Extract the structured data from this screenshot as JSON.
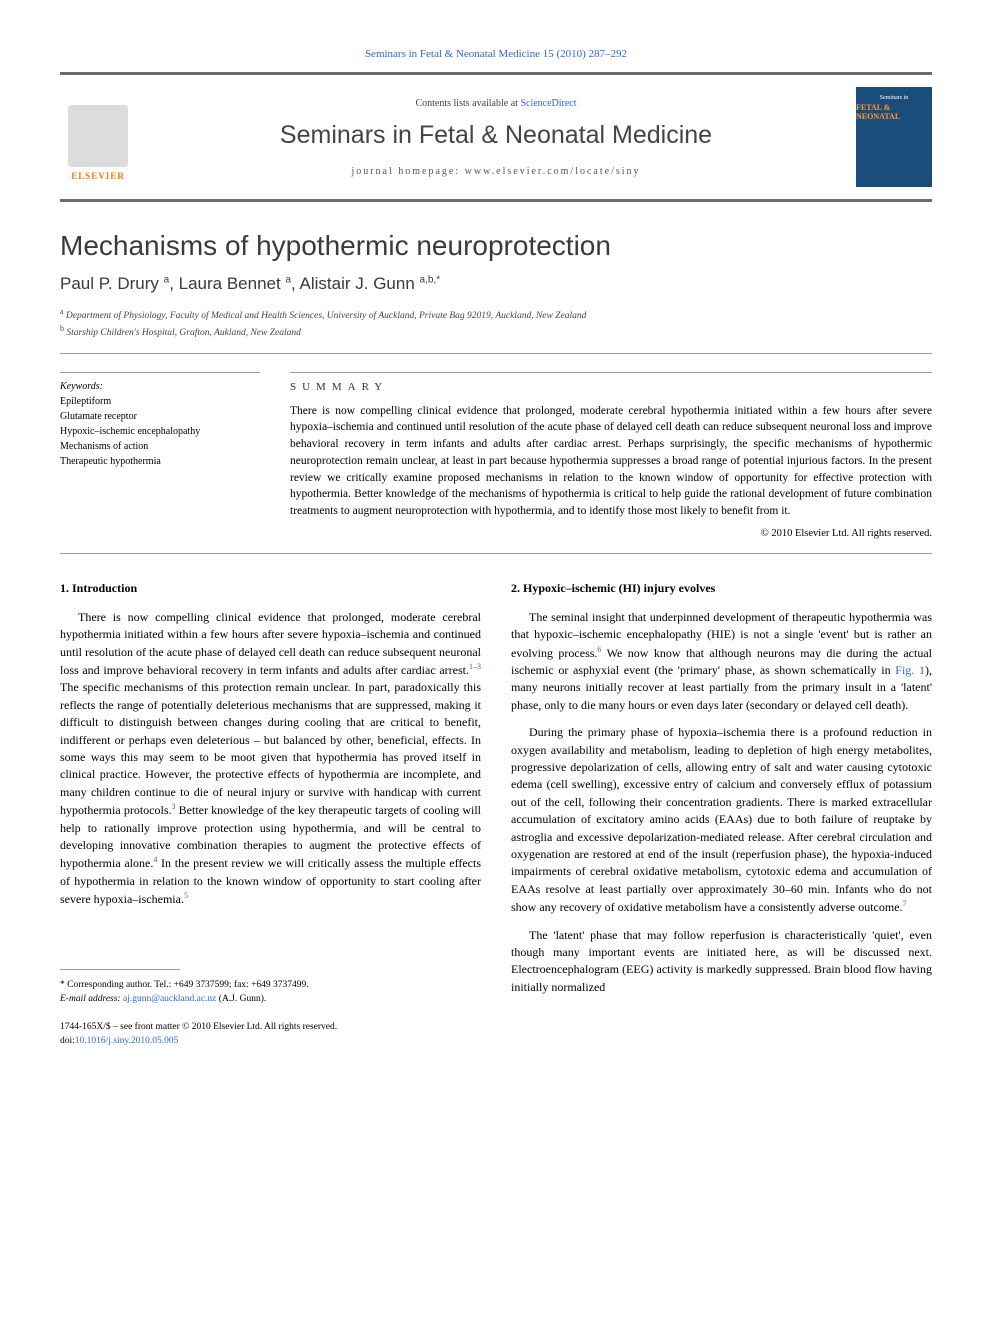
{
  "citation": "Seminars in Fetal & Neonatal Medicine 15 (2010) 287–292",
  "header": {
    "contents_prefix": "Contents lists available at ",
    "contents_link": "ScienceDirect",
    "journal_name": "Seminars in Fetal & Neonatal Medicine",
    "homepage_label": "journal homepage: www.elsevier.com/locate/siny",
    "publisher": "ELSEVIER",
    "cover_small_text": "Seminars in",
    "cover_title": "FETAL & NEONATAL"
  },
  "article": {
    "title": "Mechanisms of hypothermic neuroprotection",
    "authors_html": "Paul P. Drury <sup>a</sup>, Laura Bennet <sup>a</sup>, Alistair J. Gunn <sup>a,b,*</sup>",
    "affiliations": [
      "a Department of Physiology, Faculty of Medical and Health Sciences, University of Auckland, Private Bag 92019, Auckland, New Zealand",
      "b Starship Children's Hospital, Grafton, Aukland, New Zealand"
    ]
  },
  "keywords": {
    "label": "Keywords:",
    "items": [
      "Epileptiform",
      "Glutamate receptor",
      "Hypoxic–ischemic encephalopathy",
      "Mechanisms of action",
      "Therapeutic hypothermia"
    ]
  },
  "summary": {
    "heading": "SUMMARY",
    "text": "There is now compelling clinical evidence that prolonged, moderate cerebral hypothermia initiated within a few hours after severe hypoxia–ischemia and continued until resolution of the acute phase of delayed cell death can reduce subsequent neuronal loss and improve behavioral recovery in term infants and adults after cardiac arrest. Perhaps surprisingly, the specific mechanisms of hypothermic neuroprotection remain unclear, at least in part because hypothermia suppresses a broad range of potential injurious factors. In the present review we critically examine proposed mechanisms in relation to the known window of opportunity for effective protection with hypothermia. Better knowledge of the mechanisms of hypothermia is critical to help guide the rational development of future combination treatments to augment neuroprotection with hypothermia, and to identify those most likely to benefit from it.",
    "copyright": "© 2010 Elsevier Ltd. All rights reserved."
  },
  "sections": {
    "left": {
      "heading": "1. Introduction",
      "paragraphs": [
        "There is now compelling clinical evidence that prolonged, moderate cerebral hypothermia initiated within a few hours after severe hypoxia–ischemia and continued until resolution of the acute phase of delayed cell death can reduce subsequent neuronal loss and improve behavioral recovery in term infants and adults after cardiac arrest.<a class=\"ref-link\">1–3</a> The specific mechanisms of this protection remain unclear. In part, paradoxically this reflects the range of potentially deleterious mechanisms that are suppressed, making it difficult to distinguish between changes during cooling that are critical to benefit, indifferent or perhaps even deleterious – but balanced by other, beneficial, effects. In some ways this may seem to be moot given that hypothermia has proved itself in clinical practice. However, the protective effects of hypothermia are incomplete, and many children continue to die of neural injury or survive with handicap with current hypothermia protocols.<a class=\"ref-link\">3</a> Better knowledge of the key therapeutic targets of cooling will help to rationally improve protection using hypothermia, and will be central to developing innovative combination therapies to augment the protective effects of hypothermia alone.<a class=\"ref-link\">4</a> In the present review we will critically assess the multiple effects of hypothermia in relation to the known window of opportunity to start cooling after severe hypoxia–ischemia.<a class=\"ref-link\">5</a>"
      ]
    },
    "right": {
      "heading": "2. Hypoxic–ischemic (HI) injury evolves",
      "paragraphs": [
        "The seminal insight that underpinned development of therapeutic hypothermia was that hypoxic–ischemic encephalopathy (HIE) is not a single 'event' but is rather an evolving process.<a class=\"ref-link\">6</a> We now know that although neurons may die during the actual ischemic or asphyxial event (the 'primary' phase, as shown schematically in <a class=\"fig-link\">Fig. 1</a>), many neurons initially recover at least partially from the primary insult in a 'latent' phase, only to die many hours or even days later (secondary or delayed cell death).",
        "During the primary phase of hypoxia–ischemia there is a profound reduction in oxygen availability and metabolism, leading to depletion of high energy metabolites, progressive depolarization of cells, allowing entry of salt and water causing cytotoxic edema (cell swelling), excessive entry of calcium and conversely efflux of potassium out of the cell, following their concentration gradients. There is marked extracellular accumulation of excitatory amino acids (EAAs) due to both failure of reuptake by astroglia and excessive depolarization-mediated release. After cerebral circulation and oxygenation are restored at end of the insult (reperfusion phase), the hypoxia-induced impairments of cerebral oxidative metabolism, cytotoxic edema and accumulation of EAAs resolve at least partially over approximately 30–60 min. Infants who do not show any recovery of oxidative metabolism have a consistently adverse outcome.<a class=\"ref-link\">7</a>",
        "The 'latent' phase that may follow reperfusion is characteristically 'quiet', even though many important events are initiated here, as will be discussed next. Electroencephalogram (EEG) activity is markedly suppressed. Brain blood flow having initially normalized"
      ]
    }
  },
  "footnote": {
    "corresponding": "* Corresponding author. Tel.: +649 3737599; fax: +649 3737499.",
    "email_label": "E-mail address: ",
    "email": "aj.gunn@auckland.ac.nz",
    "email_suffix": " (A.J. Gunn)."
  },
  "footer": {
    "issn_line": "1744-165X/$ – see front matter © 2010 Elsevier Ltd. All rights reserved.",
    "doi_label": "doi:",
    "doi": "10.1016/j.siny.2010.05.005"
  },
  "colors": {
    "link": "#3366cc",
    "accent_orange": "#ff7700",
    "header_rule": "#6b6b6b",
    "cover_bg": "#1a4d7a"
  }
}
